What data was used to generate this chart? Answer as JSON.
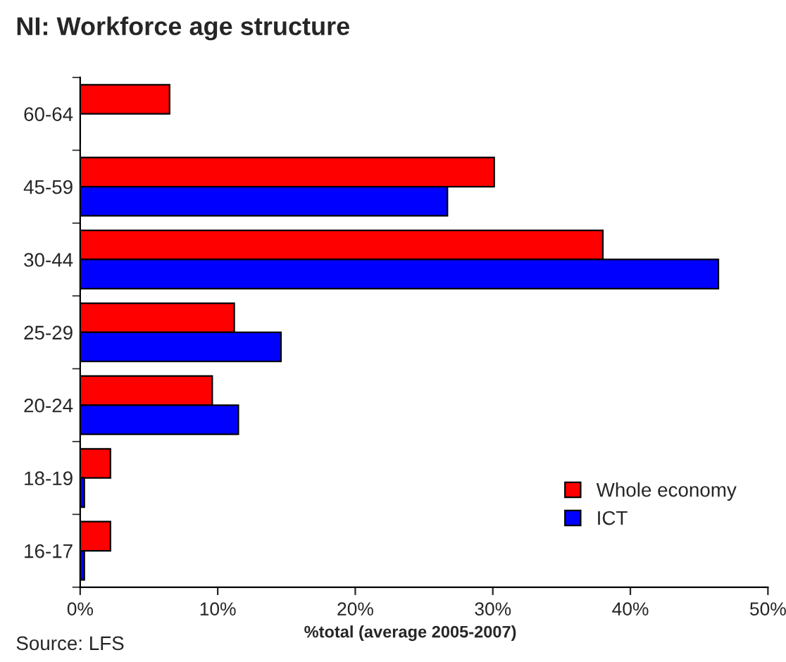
{
  "chart_data": {
    "type": "bar",
    "orientation": "horizontal",
    "title": "NI: Workforce age structure",
    "categories": [
      "60-64",
      "45-59",
      "30-44",
      "25-29",
      "20-24",
      "18-19",
      "16-17"
    ],
    "series": [
      {
        "name": "Whole economy",
        "color": "#ff0000",
        "values": [
          6.5,
          30.1,
          38.0,
          11.2,
          9.6,
          2.2,
          2.2
        ]
      },
      {
        "name": "ICT",
        "color": "#0000ff",
        "values": [
          0,
          26.7,
          46.4,
          14.6,
          11.5,
          0.3,
          0.3
        ]
      }
    ],
    "xlim": [
      0,
      50
    ],
    "xticks": [
      {
        "value": 0,
        "label": "0%"
      },
      {
        "value": 10,
        "label": "10%"
      },
      {
        "value": 20,
        "label": "20%"
      },
      {
        "value": 30,
        "label": "30%"
      },
      {
        "value": 40,
        "label": "40%"
      },
      {
        "value": 50,
        "label": "50%"
      }
    ],
    "xlabel": "%total (average 2005-2007)",
    "annotations": [
      "Source: LFS"
    ],
    "legend": "bottom right",
    "grid": false
  }
}
